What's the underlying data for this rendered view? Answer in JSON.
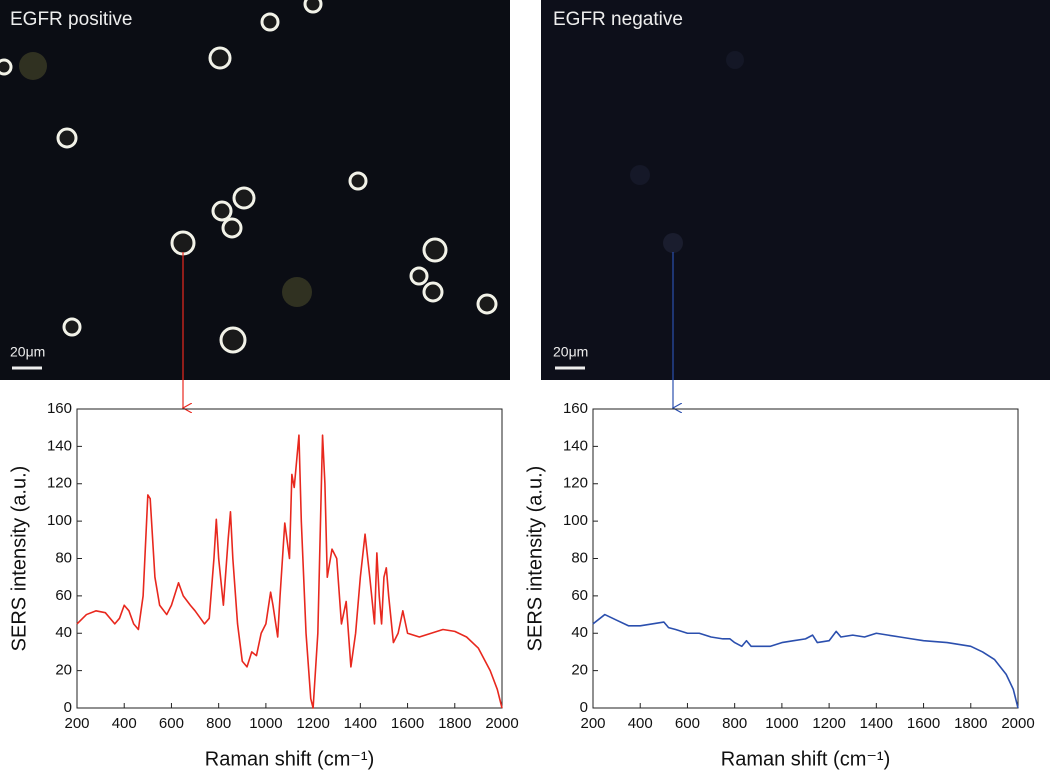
{
  "panels": [
    {
      "label": "EGFR positive",
      "scale_bar": "20μm"
    },
    {
      "label": "EGFR negative",
      "scale_bar": "20μm"
    }
  ],
  "chart_data": [
    {
      "type": "line",
      "xlabel": "Raman shift (cm⁻¹)",
      "ylabel": "SERS intensity (a.u.)",
      "x": [
        200,
        240,
        280,
        320,
        360,
        380,
        400,
        420,
        440,
        460,
        480,
        500,
        510,
        530,
        550,
        580,
        600,
        630,
        650,
        680,
        700,
        740,
        760,
        780,
        790,
        800,
        820,
        840,
        850,
        860,
        880,
        900,
        920,
        940,
        960,
        980,
        1000,
        1020,
        1030,
        1050,
        1060,
        1080,
        1100,
        1110,
        1120,
        1140,
        1150,
        1170,
        1190,
        1200,
        1220,
        1240,
        1250,
        1260,
        1280,
        1300,
        1320,
        1340,
        1360,
        1380,
        1400,
        1420,
        1440,
        1460,
        1470,
        1480,
        1490,
        1500,
        1510,
        1520,
        1540,
        1560,
        1580,
        1600,
        1650,
        1700,
        1750,
        1800,
        1850,
        1900,
        1950,
        1980,
        2000
      ],
      "series": [
        {
          "color": "#e8281e",
          "values": [
            45,
            50,
            52,
            51,
            45,
            48,
            55,
            52,
            45,
            42,
            60,
            114,
            112,
            70,
            55,
            50,
            55,
            67,
            60,
            55,
            52,
            45,
            48,
            80,
            101,
            80,
            55,
            90,
            105,
            80,
            45,
            25,
            22,
            30,
            28,
            40,
            45,
            62,
            55,
            38,
            60,
            99,
            80,
            125,
            118,
            146,
            100,
            40,
            5,
            0,
            40,
            146,
            120,
            70,
            85,
            80,
            45,
            57,
            22,
            40,
            70,
            93,
            70,
            45,
            83,
            60,
            45,
            70,
            75,
            60,
            35,
            40,
            52,
            40,
            38,
            40,
            42,
            41,
            38,
            32,
            20,
            10,
            0
          ]
        }
      ],
      "xlim": [
        200,
        2000
      ],
      "ylim": [
        0,
        160
      ],
      "xticks": [
        200,
        400,
        600,
        800,
        1000,
        1200,
        1400,
        1600,
        1800,
        2000
      ],
      "yticks": [
        0,
        20,
        40,
        60,
        80,
        100,
        120,
        140,
        160
      ]
    },
    {
      "type": "line",
      "xlabel": "Raman shift (cm⁻¹)",
      "ylabel": "SERS intensity (a.u.)",
      "x": [
        200,
        250,
        300,
        350,
        400,
        450,
        500,
        520,
        550,
        600,
        650,
        700,
        750,
        780,
        800,
        830,
        850,
        870,
        900,
        950,
        1000,
        1050,
        1100,
        1130,
        1150,
        1200,
        1230,
        1250,
        1300,
        1350,
        1400,
        1450,
        1500,
        1550,
        1600,
        1700,
        1800,
        1850,
        1900,
        1950,
        1980,
        2000
      ],
      "series": [
        {
          "color": "#2b4fae",
          "values": [
            45,
            50,
            47,
            44,
            44,
            45,
            46,
            43,
            42,
            40,
            40,
            38,
            37,
            37,
            35,
            33,
            36,
            33,
            33,
            33,
            35,
            36,
            37,
            39,
            35,
            36,
            41,
            38,
            39,
            38,
            40,
            39,
            38,
            37,
            36,
            35,
            33,
            30,
            26,
            18,
            10,
            0
          ]
        }
      ],
      "xlim": [
        200,
        2000
      ],
      "ylim": [
        0,
        160
      ],
      "xticks": [
        200,
        400,
        600,
        800,
        1000,
        1200,
        1400,
        1600,
        1800,
        2000
      ],
      "yticks": [
        0,
        20,
        40,
        60,
        80,
        100,
        120,
        140,
        160
      ]
    }
  ]
}
